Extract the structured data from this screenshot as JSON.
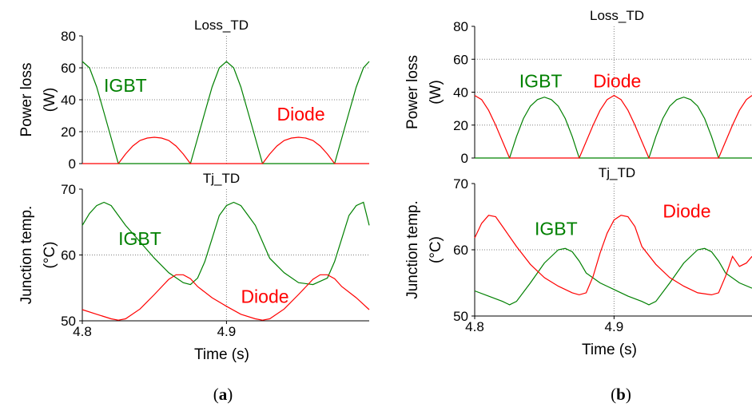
{
  "panels": [
    {
      "caption_label": "a",
      "charts": [
        {
          "type": "line",
          "title": "Loss_TD",
          "xlabel": "",
          "ylabel": "Power loss (W)",
          "ylabel_lines": [
            "Power loss",
            "(W)"
          ],
          "xlim": [
            4.8,
            4.999
          ],
          "ylim": [
            0,
            80
          ],
          "yticks": [
            0,
            20,
            40,
            60,
            80
          ],
          "xticks": [],
          "grid": true,
          "series": [
            {
              "name": "IGBT",
              "color": "#008000",
              "label_at": [
                4.815,
                45
              ],
              "x": [
                4.8,
                4.805,
                4.81,
                4.815,
                4.82,
                4.825,
                4.875,
                4.88,
                4.885,
                4.89,
                4.895,
                4.9,
                4.905,
                4.91,
                4.915,
                4.92,
                4.925,
                4.975,
                4.98,
                4.985,
                4.99,
                4.995,
                4.999
              ],
              "y": [
                64,
                60,
                48,
                32,
                16,
                0,
                0,
                16,
                32,
                48,
                60,
                64,
                60,
                48,
                32,
                16,
                0,
                0,
                16,
                32,
                48,
                60,
                64
              ]
            },
            {
              "name": "Diode",
              "color": "#ff0000",
              "label_at": [
                4.935,
                27
              ],
              "x": [
                4.8,
                4.825,
                4.83,
                4.835,
                4.84,
                4.845,
                4.85,
                4.855,
                4.86,
                4.865,
                4.87,
                4.875,
                4.925,
                4.93,
                4.935,
                4.94,
                4.945,
                4.95,
                4.955,
                4.96,
                4.965,
                4.97,
                4.975,
                4.999
              ],
              "y": [
                0,
                0,
                6,
                11,
                14.5,
                16,
                16.5,
                16,
                14.5,
                11,
                6,
                0,
                0,
                6,
                11,
                14.5,
                16,
                16.5,
                16,
                14.5,
                11,
                6,
                0,
                0
              ]
            }
          ]
        },
        {
          "type": "line",
          "title": "Tj_TD",
          "xlabel": "Time (s)",
          "ylabel": "Junction temp. (°C)",
          "ylabel_lines": [
            "Junction temp.",
            "(°C)"
          ],
          "xlim": [
            4.8,
            4.999
          ],
          "ylim": [
            50,
            70
          ],
          "yticks": [
            50,
            60,
            70
          ],
          "xticks": [
            4.8,
            4.9
          ],
          "xtick_labels": [
            "4.8",
            "4.9"
          ],
          "grid": true,
          "series": [
            {
              "name": "IGBT",
              "color": "#008000",
              "label_at": [
                4.825,
                61.5
              ],
              "x": [
                4.8,
                4.805,
                4.81,
                4.815,
                4.82,
                4.825,
                4.83,
                4.84,
                4.85,
                4.86,
                4.87,
                4.875,
                4.88,
                4.885,
                4.89,
                4.895,
                4.9,
                4.905,
                4.91,
                4.915,
                4.92,
                4.925,
                4.93,
                4.94,
                4.95,
                4.96,
                4.97,
                4.975,
                4.98,
                4.985,
                4.99,
                4.995,
                4.999
              ],
              "y": [
                64.5,
                66.3,
                67.5,
                68,
                67.5,
                66,
                64.5,
                62,
                59.5,
                57.3,
                55.8,
                55.5,
                56.5,
                59,
                62.5,
                66,
                67.5,
                68,
                67.5,
                66,
                64.5,
                62,
                59.5,
                57.3,
                55.8,
                55.5,
                56.5,
                59,
                62.5,
                66,
                67.5,
                68,
                64.5
              ]
            },
            {
              "name": "Diode",
              "color": "#ff0000",
              "label_at": [
                4.91,
                52.7
              ],
              "x": [
                4.8,
                4.81,
                4.82,
                4.825,
                4.83,
                4.84,
                4.85,
                4.86,
                4.865,
                4.87,
                4.875,
                4.88,
                4.89,
                4.9,
                4.91,
                4.92,
                4.925,
                4.93,
                4.94,
                4.95,
                4.96,
                4.965,
                4.97,
                4.975,
                4.98,
                4.99,
                4.999
              ],
              "y": [
                51.7,
                51,
                50.3,
                50.1,
                50.3,
                51.8,
                54,
                56.3,
                57,
                57,
                56.4,
                55.2,
                53.5,
                52.2,
                51,
                50.3,
                50.1,
                50.3,
                51.8,
                54,
                56.3,
                57,
                57,
                56.4,
                55.2,
                53.5,
                51.7
              ]
            }
          ]
        }
      ]
    },
    {
      "caption_label": "b",
      "charts": [
        {
          "type": "line",
          "title": "Loss_TD",
          "xlabel": "",
          "ylabel": "Power loss (W)",
          "ylabel_lines": [
            "Power loss",
            "(W)"
          ],
          "xlim": [
            4.8,
            4.999
          ],
          "ylim": [
            0,
            80
          ],
          "yticks": [
            0,
            20,
            40,
            60,
            80
          ],
          "xticks": [],
          "grid": true,
          "series": [
            {
              "name": "IGBT",
              "color": "#008000",
              "label_at": [
                4.832,
                43
              ],
              "x": [
                4.8,
                4.825,
                4.83,
                4.835,
                4.84,
                4.845,
                4.85,
                4.855,
                4.86,
                4.865,
                4.87,
                4.875,
                4.925,
                4.93,
                4.935,
                4.94,
                4.945,
                4.95,
                4.955,
                4.96,
                4.965,
                4.97,
                4.975,
                4.999
              ],
              "y": [
                0,
                0,
                13,
                24,
                31.5,
                35.5,
                37,
                35.5,
                31.5,
                24,
                13,
                0,
                0,
                13,
                24,
                31.5,
                35.5,
                37,
                35.5,
                31.5,
                24,
                13,
                0,
                0
              ]
            },
            {
              "name": "Diode",
              "color": "#ff0000",
              "label_at": [
                4.885,
                43
              ],
              "x": [
                4.8,
                4.805,
                4.81,
                4.815,
                4.82,
                4.825,
                4.875,
                4.88,
                4.885,
                4.89,
                4.895,
                4.9,
                4.905,
                4.91,
                4.915,
                4.92,
                4.925,
                4.975,
                4.98,
                4.985,
                4.99,
                4.995,
                4.999
              ],
              "y": [
                38,
                35.5,
                29,
                20,
                10,
                0,
                0,
                10,
                20,
                29,
                35.5,
                38,
                35.5,
                29,
                20,
                10,
                0,
                0,
                10,
                20,
                29,
                35.5,
                38
              ]
            }
          ]
        },
        {
          "type": "line",
          "title": "Tj_TD",
          "xlabel": "Time (s)",
          "ylabel": "Junction temp. (°C)",
          "ylabel_lines": [
            "Junction temp.",
            "(°C)"
          ],
          "xlim": [
            4.8,
            4.999
          ],
          "ylim": [
            50,
            70
          ],
          "yticks": [
            50,
            60,
            70
          ],
          "xticks": [
            4.8,
            4.9
          ],
          "xtick_labels": [
            "4.8",
            "4.9"
          ],
          "grid": true,
          "series": [
            {
              "name": "IGBT",
              "color": "#008000",
              "label_at": [
                4.843,
                62.2
              ],
              "x": [
                4.8,
                4.81,
                4.82,
                4.825,
                4.83,
                4.84,
                4.85,
                4.86,
                4.865,
                4.87,
                4.875,
                4.88,
                4.89,
                4.9,
                4.91,
                4.92,
                4.925,
                4.93,
                4.94,
                4.95,
                4.96,
                4.965,
                4.97,
                4.975,
                4.98,
                4.99,
                4.999
              ],
              "y": [
                53.8,
                53,
                52.2,
                51.7,
                52.2,
                55,
                58,
                60,
                60.2,
                59.7,
                58.3,
                56.5,
                55,
                54,
                53,
                52.2,
                51.7,
                52.2,
                55,
                58,
                60,
                60.2,
                59.7,
                58.3,
                56.5,
                55,
                54.2
              ]
            },
            {
              "name": "Diode",
              "color": "#ff0000",
              "label_at": [
                4.935,
                64.9
              ],
              "x": [
                4.8,
                4.805,
                4.81,
                4.815,
                4.82,
                4.83,
                4.84,
                4.85,
                4.86,
                4.87,
                4.875,
                4.88,
                4.885,
                4.89,
                4.895,
                4.9,
                4.905,
                4.91,
                4.915,
                4.92,
                4.93,
                4.94,
                4.95,
                4.96,
                4.97,
                4.975,
                4.98,
                4.985,
                4.99,
                4.995,
                4.999
              ],
              "y": [
                61.8,
                64,
                65.2,
                65,
                63.5,
                60.5,
                57.8,
                55.8,
                54.5,
                53.5,
                53.2,
                53.5,
                56,
                59.5,
                62.5,
                64.5,
                65.2,
                65,
                63.5,
                60.5,
                57.8,
                55.8,
                54.5,
                53.5,
                53.2,
                53.5,
                56,
                59,
                57.5,
                58,
                59
              ]
            }
          ]
        }
      ]
    }
  ]
}
